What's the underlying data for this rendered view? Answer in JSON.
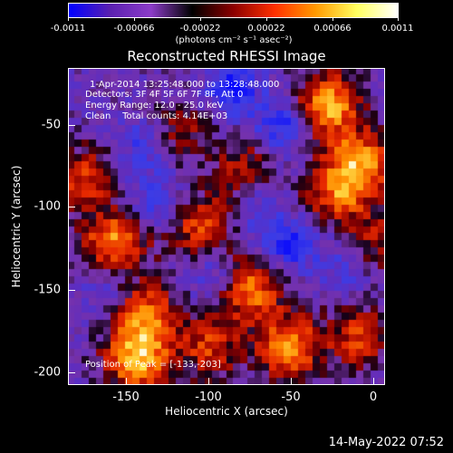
{
  "colorbar": {
    "tick_labels": [
      "-0.0011",
      "-0.00066",
      "-0.00022",
      "0.00022",
      "0.00066",
      "0.0011"
    ],
    "units": "(photons cm⁻² s⁻¹ asec⁻²)"
  },
  "title": "Reconstructed RHESSI Image",
  "annotations": {
    "time_range": "1-Apr-2014 13:25:48.000 to 13:28:48.000",
    "detectors": "Detectors: 3F 4F 5F 6F 7F 8F, Att 0",
    "energy_range": "Energy Range: 12.0 - 25.0 keV",
    "method_counts": "Clean    Total counts: 4.14E+03",
    "peak": "Position of Peak = [-133,-203]"
  },
  "axes": {
    "xlabel": "Heliocentric X (arcsec)",
    "ylabel": "Heliocentric Y (arcsec)",
    "xlim": [
      -185,
      7
    ],
    "ylim": [
      -208,
      -30
    ],
    "xticks": [
      "-150",
      "-100",
      "-50",
      "0"
    ],
    "yticks": [
      "-50",
      "-100",
      "-150",
      "-200"
    ]
  },
  "footer": "14-May-2022 07:52",
  "colors": {
    "colormap": [
      "#0000ff",
      "#5a20b0",
      "#8c3cc8",
      "#000000",
      "#8c0000",
      "#ff3000",
      "#ff9a00",
      "#ffff60",
      "#ffffff"
    ]
  }
}
